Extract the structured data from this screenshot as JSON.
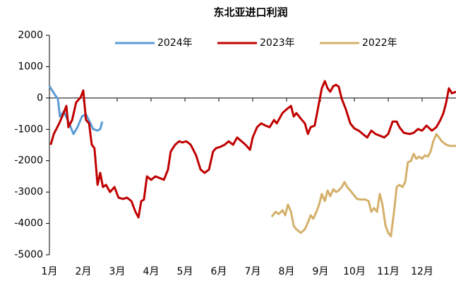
{
  "chart_data": {
    "type": "line",
    "title": "东北亚进口利润",
    "xlim": [
      1,
      13
    ],
    "xticks": [
      {
        "value": 1,
        "label": "1月"
      },
      {
        "value": 2,
        "label": "2月"
      },
      {
        "value": 3,
        "label": "3月"
      },
      {
        "value": 4,
        "label": "4月"
      },
      {
        "value": 5,
        "label": "5月"
      },
      {
        "value": 6,
        "label": "6月"
      },
      {
        "value": 7,
        "label": "7月"
      },
      {
        "value": 8,
        "label": "8月"
      },
      {
        "value": 9,
        "label": "9月"
      },
      {
        "value": 10,
        "label": "10月"
      },
      {
        "value": 11,
        "label": "11月"
      },
      {
        "value": 12,
        "label": "12月"
      }
    ],
    "ylim": [
      -5000,
      2000
    ],
    "yticks": [
      -5000,
      -4000,
      -3000,
      -2000,
      -1000,
      0,
      1000,
      2000
    ],
    "legend": "top",
    "series": [
      {
        "name": "2024年",
        "color": "#5b9bd5",
        "x": [
          1.0,
          1.17,
          1.25,
          1.31,
          1.42,
          1.54,
          1.63,
          1.71,
          1.83,
          1.96,
          2.08,
          2.21,
          2.29,
          2.42,
          2.5,
          2.56
        ],
        "values": [
          380,
          90,
          -30,
          -590,
          -430,
          -700,
          -930,
          -1150,
          -930,
          -590,
          -520,
          -810,
          -990,
          -1040,
          -990,
          -750
        ]
      },
      {
        "name": "2023年",
        "color": "#c00000",
        "x": [
          1.04,
          1.13,
          1.29,
          1.42,
          1.5,
          1.56,
          1.67,
          1.79,
          1.92,
          2.0,
          2.08,
          2.17,
          2.25,
          2.33,
          2.42,
          2.5,
          2.58,
          2.67,
          2.79,
          2.92,
          3.04,
          3.17,
          3.29,
          3.42,
          3.54,
          3.63,
          3.71,
          3.79,
          3.88,
          4.0,
          4.13,
          4.25,
          4.38,
          4.5,
          4.58,
          4.71,
          4.83,
          4.92,
          5.04,
          5.17,
          5.33,
          5.46,
          5.58,
          5.71,
          5.83,
          5.92,
          6.04,
          6.17,
          6.29,
          6.42,
          6.54,
          6.67,
          6.79,
          6.92,
          7.0,
          7.13,
          7.25,
          7.38,
          7.5,
          7.63,
          7.71,
          7.88,
          8.0,
          8.13,
          8.21,
          8.29,
          8.42,
          8.54,
          8.63,
          8.71,
          8.83,
          8.92,
          9.04,
          9.13,
          9.21,
          9.29,
          9.38,
          9.46,
          9.54,
          9.63,
          9.75,
          9.88,
          10.0,
          10.13,
          10.25,
          10.38,
          10.5,
          10.63,
          10.75,
          10.88,
          11.0,
          11.13,
          11.25,
          11.33,
          11.46,
          11.63,
          11.75,
          11.88,
          12.0,
          12.13,
          12.29,
          12.42,
          12.54,
          12.63,
          12.71,
          12.79,
          12.88,
          13.0
        ],
        "values": [
          -1490,
          -1150,
          -810,
          -480,
          -250,
          -930,
          -700,
          -140,
          20,
          240,
          -700,
          -810,
          -1490,
          -1600,
          -2770,
          -2390,
          -2840,
          -2770,
          -3000,
          -2840,
          -3180,
          -3220,
          -3180,
          -3290,
          -3630,
          -3810,
          -3290,
          -3240,
          -2500,
          -2610,
          -2500,
          -2550,
          -2610,
          -2280,
          -1710,
          -1490,
          -1380,
          -1420,
          -1380,
          -1490,
          -1830,
          -2280,
          -2390,
          -2280,
          -1710,
          -1600,
          -1560,
          -1490,
          -1380,
          -1490,
          -1260,
          -1380,
          -1490,
          -1650,
          -1260,
          -930,
          -810,
          -880,
          -930,
          -700,
          -810,
          -480,
          -360,
          -250,
          -590,
          -480,
          -660,
          -810,
          -1150,
          -930,
          -880,
          -360,
          310,
          540,
          310,
          200,
          380,
          420,
          360,
          -30,
          -360,
          -810,
          -970,
          -1040,
          -1150,
          -1260,
          -1040,
          -1150,
          -1200,
          -1260,
          -1150,
          -750,
          -750,
          -930,
          -1110,
          -1150,
          -1110,
          -990,
          -1040,
          -880,
          -1040,
          -930,
          -700,
          -480,
          -140,
          310,
          150,
          200
        ]
      },
      {
        "name": "2022年",
        "color": "#d4b06a",
        "x": [
          7.56,
          7.67,
          7.77,
          7.88,
          7.96,
          8.04,
          8.13,
          8.21,
          8.29,
          8.42,
          8.54,
          8.63,
          8.71,
          8.79,
          8.88,
          8.96,
          9.04,
          9.13,
          9.21,
          9.29,
          9.38,
          9.46,
          9.54,
          9.63,
          9.71,
          9.79,
          9.88,
          9.96,
          10.08,
          10.21,
          10.33,
          10.42,
          10.5,
          10.58,
          10.67,
          10.75,
          10.83,
          10.92,
          11.0,
          11.08,
          11.17,
          11.25,
          11.33,
          11.42,
          11.5,
          11.58,
          11.67,
          11.75,
          11.83,
          11.92,
          12.0,
          12.08,
          12.17,
          12.25,
          12.33,
          12.42,
          12.5,
          12.58,
          12.71,
          12.83,
          13.0
        ],
        "values": [
          -3790,
          -3630,
          -3700,
          -3580,
          -3740,
          -3400,
          -3630,
          -4080,
          -4190,
          -4300,
          -4190,
          -3970,
          -3740,
          -3850,
          -3630,
          -3400,
          -3060,
          -3290,
          -2950,
          -3130,
          -2910,
          -3000,
          -2950,
          -2840,
          -2680,
          -2840,
          -2950,
          -3060,
          -3220,
          -3240,
          -3240,
          -3290,
          -3630,
          -3510,
          -3630,
          -3060,
          -3400,
          -4080,
          -4300,
          -4410,
          -3630,
          -2840,
          -2770,
          -2840,
          -2680,
          -2050,
          -2010,
          -1780,
          -1940,
          -1870,
          -1940,
          -1830,
          -1870,
          -1710,
          -1380,
          -1150,
          -1260,
          -1380,
          -1490,
          -1530,
          -1530
        ]
      }
    ]
  }
}
